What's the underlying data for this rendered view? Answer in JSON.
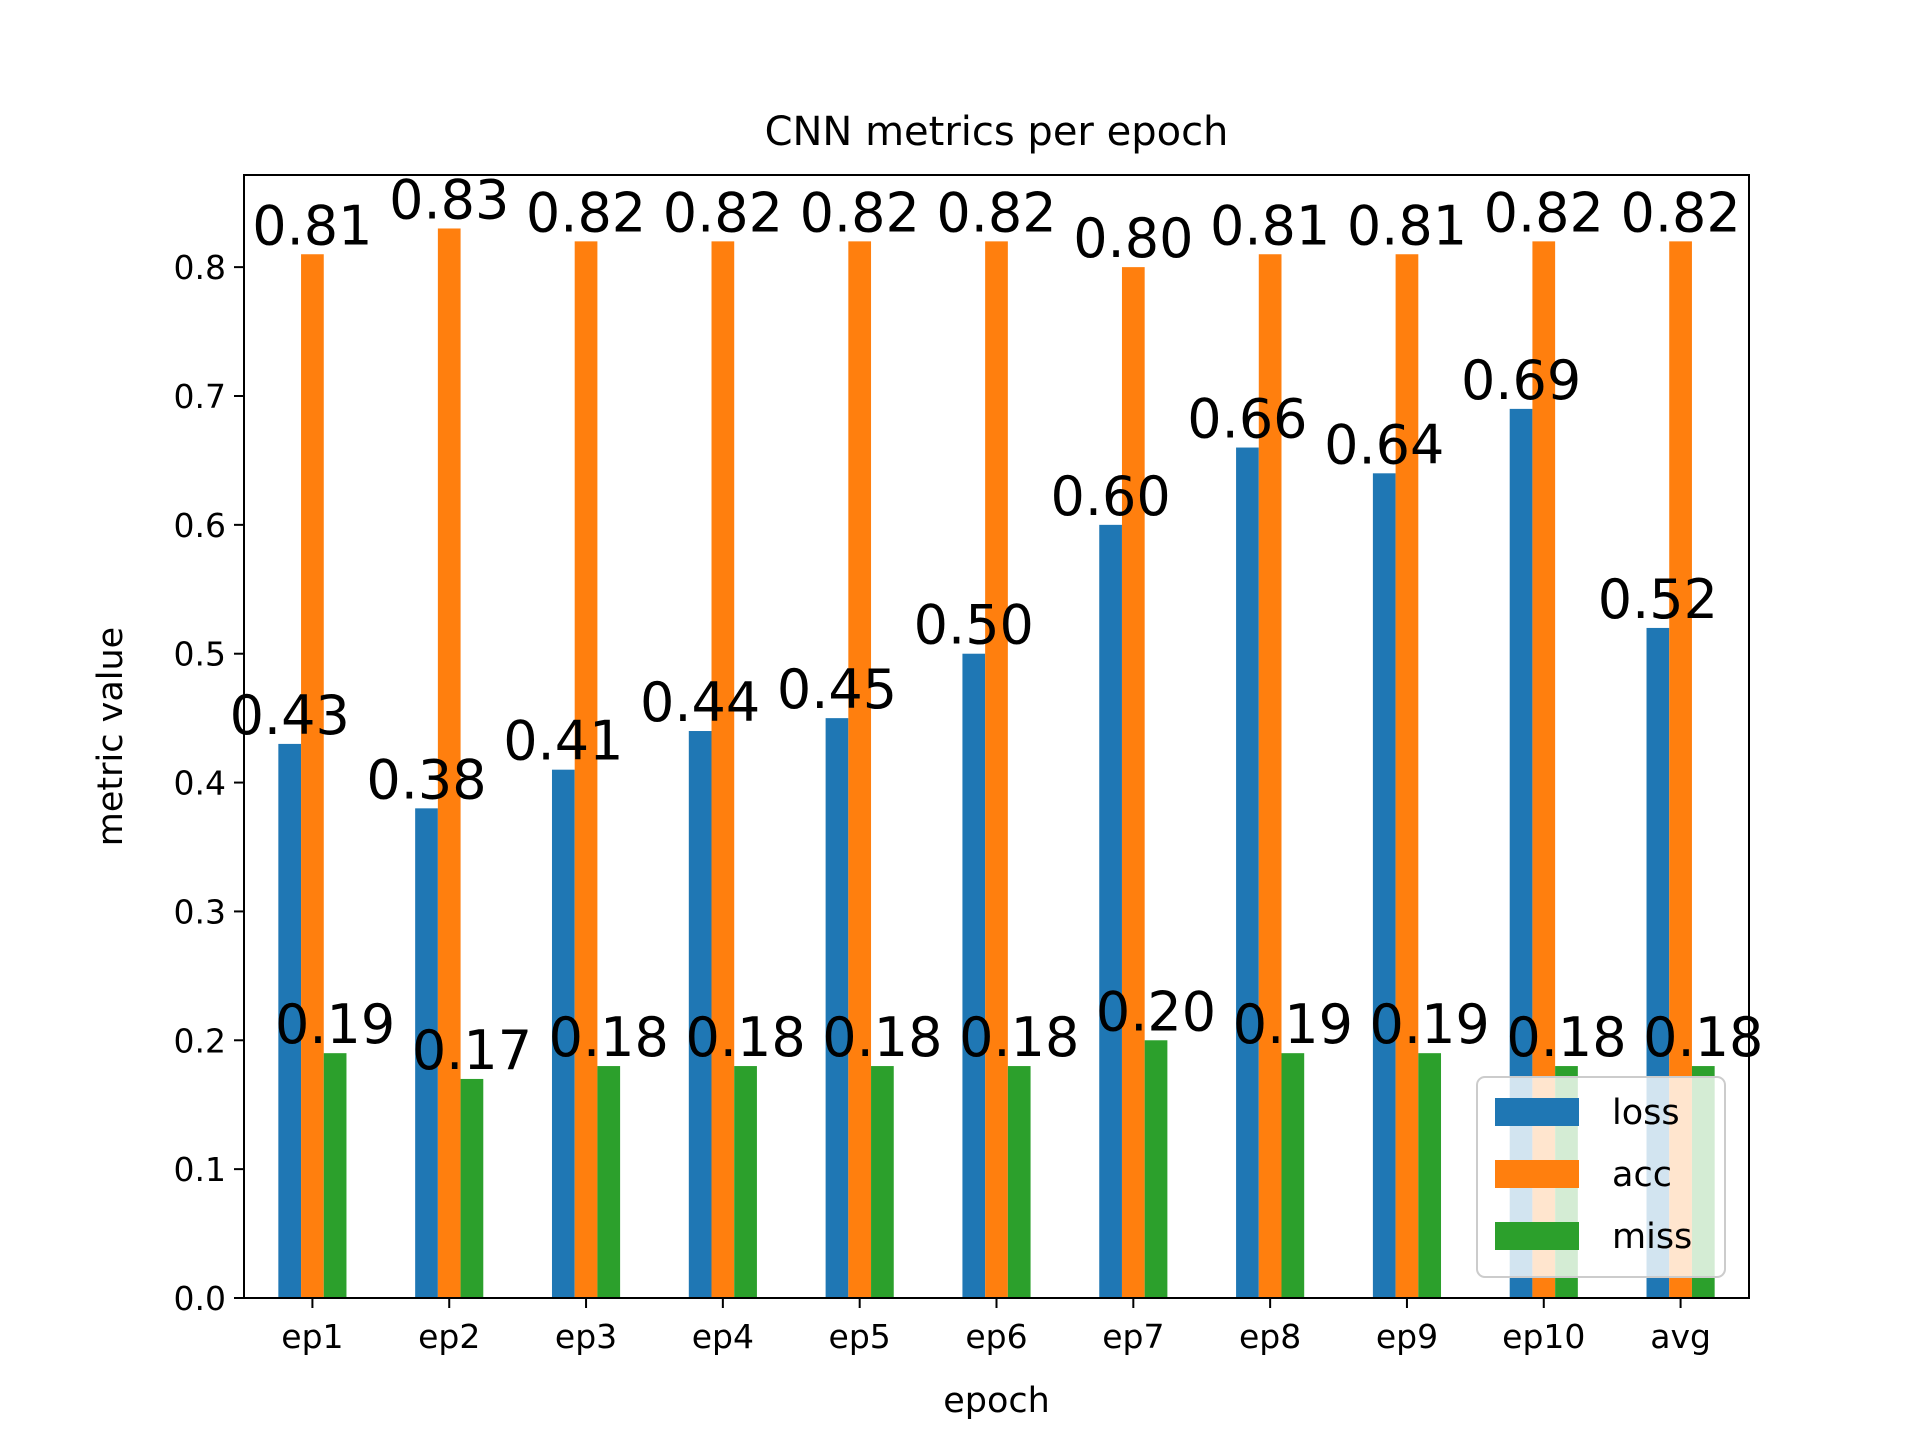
{
  "chart_data": {
    "type": "bar",
    "title": "CNN metrics per epoch",
    "xlabel": "epoch",
    "ylabel": "metric value",
    "categories": [
      "ep1",
      "ep2",
      "ep3",
      "ep4",
      "ep5",
      "ep6",
      "ep7",
      "ep8",
      "ep9",
      "ep10",
      "avg"
    ],
    "series": [
      {
        "name": "loss",
        "color": "#1f77b4",
        "values": [
          0.43,
          0.38,
          0.41,
          0.44,
          0.45,
          0.5,
          0.6,
          0.66,
          0.64,
          0.69,
          0.52
        ]
      },
      {
        "name": "acc",
        "color": "#ff7f0e",
        "values": [
          0.81,
          0.83,
          0.82,
          0.82,
          0.82,
          0.82,
          0.8,
          0.81,
          0.81,
          0.82,
          0.82
        ]
      },
      {
        "name": "miss",
        "color": "#2ca02c",
        "values": [
          0.19,
          0.17,
          0.18,
          0.18,
          0.18,
          0.18,
          0.2,
          0.19,
          0.19,
          0.18,
          0.18
        ]
      }
    ],
    "ylim": [
      0,
      0.8715
    ],
    "yticks": [
      0.0,
      0.1,
      0.2,
      0.3,
      0.4,
      0.5,
      0.6,
      0.7,
      0.8
    ],
    "ytick_labels": [
      "0.0",
      "0.1",
      "0.2",
      "0.3",
      "0.4",
      "0.5",
      "0.6",
      "0.7",
      "0.8"
    ],
    "value_label_format": "2 decimals",
    "grid": false,
    "legend_position": "lower-right"
  }
}
